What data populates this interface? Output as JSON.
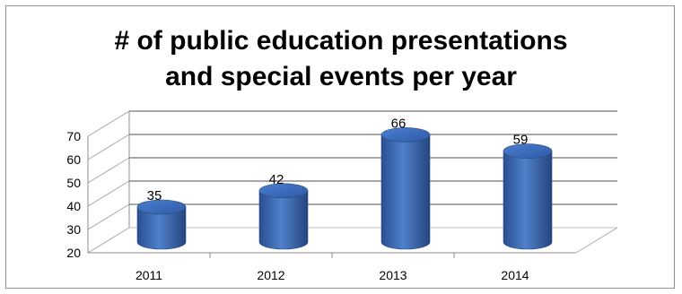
{
  "chart_data": {
    "type": "bar",
    "title_line1": "# of  public education presentations",
    "title_line2": "and special events per year",
    "categories": [
      "2011",
      "2012",
      "2013",
      "2014"
    ],
    "values": [
      35,
      42,
      66,
      59
    ],
    "ylim": [
      20,
      70
    ],
    "yticks": [
      "20",
      "30",
      "40",
      "50",
      "60",
      "70"
    ],
    "grid": true,
    "bar_color": "#4472c4",
    "three_d": true
  }
}
